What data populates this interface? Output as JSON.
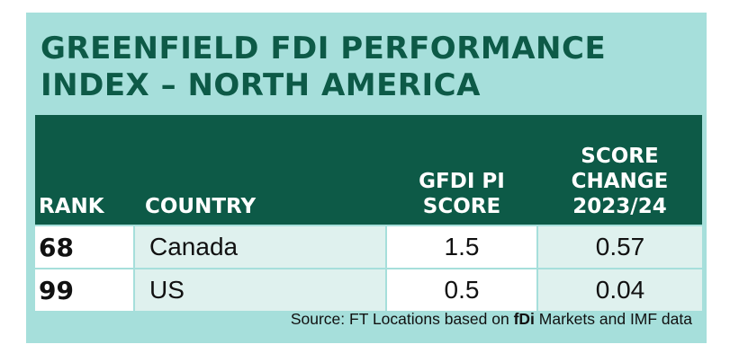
{
  "title_line1": "GREENFIELD FDI PERFORMANCE",
  "title_line2": "INDEX – NORTH AMERICA",
  "columns": {
    "rank": "RANK",
    "country": "COUNTRY",
    "score_line1": "GFDI PI",
    "score_line2": "SCORE",
    "change_line1": "SCORE",
    "change_line2": "CHANGE",
    "change_line3": "2023/24"
  },
  "rows": [
    {
      "rank": "68",
      "country": "Canada",
      "score": "1.5",
      "change": "0.57"
    },
    {
      "rank": "99",
      "country": "US",
      "score": "0.5",
      "change": "0.04"
    }
  ],
  "source": {
    "prefix": "Source: FT Locations based on ",
    "bold": "fDi",
    "suffix": " Markets and IMF data"
  },
  "colors": {
    "header_bg": "#0d5a47",
    "panel_bg": "#a6dfdb",
    "title": "#0d5a47",
    "alt_cell": "#dff1ee"
  },
  "chart_data": {
    "type": "table",
    "title": "GREENFIELD FDI PERFORMANCE INDEX – NORTH AMERICA",
    "columns": [
      "RANK",
      "COUNTRY",
      "GFDI PI SCORE",
      "SCORE CHANGE 2023/24"
    ],
    "rows": [
      [
        "68",
        "Canada",
        1.5,
        0.57
      ],
      [
        "99",
        "US",
        0.5,
        0.04
      ]
    ]
  }
}
